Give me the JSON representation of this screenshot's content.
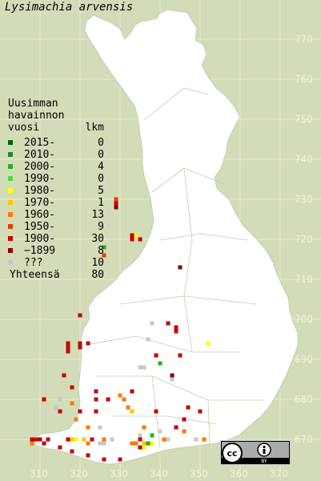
{
  "title": "Lysimachia arvensis",
  "legend": {
    "header": [
      "Uusimman",
      "havainnon"
    ],
    "col_year": "vuosi",
    "col_count": "lkm",
    "rows": [
      {
        "label": "2015-",
        "count": "0",
        "color": "#006400"
      },
      {
        "label": "2010-",
        "count": "0",
        "color": "#228b22"
      },
      {
        "label": "2000-",
        "count": "4",
        "color": "#22b022"
      },
      {
        "label": "1990-",
        "count": "0",
        "color": "#44e044"
      },
      {
        "label": "1980-",
        "count": "5",
        "color": "#ffff00"
      },
      {
        "label": "1970-",
        "count": "1",
        "color": "#ffc800"
      },
      {
        "label": "1960-",
        "count": "13",
        "color": "#ff7800"
      },
      {
        "label": "1950-",
        "count": "9",
        "color": "#e63c00"
      },
      {
        "label": "1900-",
        "count": "30",
        "color": "#c80000"
      },
      {
        "label": "−1899",
        "count": "8",
        "color": "#8b0000"
      },
      {
        "label": "???",
        "count": "10",
        "color": "#c8c8c8"
      }
    ],
    "total_label": "Yhteensä",
    "total_count": "80"
  },
  "axis_y": [
    "770",
    "760",
    "750",
    "740",
    "730",
    "720",
    "710",
    "700",
    "690",
    "680",
    "670"
  ],
  "axis_x": [
    "310",
    "320",
    "330",
    "340",
    "350",
    "360",
    "370"
  ],
  "license": {
    "badge": "cc",
    "by": "BY",
    "icon": "attribution-icon"
  },
  "observations": [
    {
      "e": 329,
      "n": 729,
      "c": "#c80000"
    },
    {
      "e": 329,
      "n": 728,
      "c": "#8b0000"
    },
    {
      "e": 329,
      "n": 730,
      "c": "#e63c00"
    },
    {
      "e": 333,
      "n": 721,
      "c": "#c80000"
    },
    {
      "e": 334,
      "n": 721,
      "c": "#ffff00"
    },
    {
      "e": 335,
      "n": 720,
      "c": "#c80000"
    },
    {
      "e": 333,
      "n": 720,
      "c": "#c80000"
    },
    {
      "e": 326,
      "n": 718,
      "c": "#22b022"
    },
    {
      "e": 326,
      "n": 716,
      "c": "#e63c00"
    },
    {
      "e": 345,
      "n": 713,
      "c": "#8b0000"
    },
    {
      "e": 342,
      "n": 699,
      "c": "#c80000"
    },
    {
      "e": 344,
      "n": 698,
      "c": "#c80000"
    },
    {
      "e": 344,
      "n": 697,
      "c": "#c80000"
    },
    {
      "e": 338,
      "n": 699,
      "c": "#c8c8c8"
    },
    {
      "e": 337,
      "n": 695,
      "c": "#c8c8c8"
    },
    {
      "e": 352,
      "n": 694,
      "c": "#ffff00"
    },
    {
      "e": 320,
      "n": 701,
      "c": "#c80000"
    },
    {
      "e": 317,
      "n": 694,
      "c": "#c80000"
    },
    {
      "e": 320,
      "n": 694,
      "c": "#c80000"
    },
    {
      "e": 320,
      "n": 693,
      "c": "#c80000"
    },
    {
      "e": 322,
      "n": 694,
      "c": "#c80000"
    },
    {
      "e": 317,
      "n": 693,
      "c": "#c80000"
    },
    {
      "e": 317,
      "n": 692,
      "c": "#c80000"
    },
    {
      "e": 339,
      "n": 691,
      "c": "#c80000"
    },
    {
      "e": 345,
      "n": 691,
      "c": "#c80000"
    },
    {
      "e": 340,
      "n": 689,
      "c": "#22b022"
    },
    {
      "e": 335,
      "n": 688,
      "c": "#c8c8c8"
    },
    {
      "e": 336,
      "n": 688,
      "c": "#c8c8c8"
    },
    {
      "e": 343,
      "n": 686,
      "c": "#8b0000"
    },
    {
      "e": 343,
      "n": 685,
      "c": "#c8c8c8"
    },
    {
      "e": 316,
      "n": 686,
      "c": "#c80000"
    },
    {
      "e": 318,
      "n": 683,
      "c": "#c80000"
    },
    {
      "e": 324,
      "n": 682,
      "c": "#c80000"
    },
    {
      "e": 330,
      "n": 681,
      "c": "#ff7800"
    },
    {
      "e": 333,
      "n": 682,
      "c": "#c80000"
    },
    {
      "e": 324,
      "n": 680,
      "c": "#c80000"
    },
    {
      "e": 327,
      "n": 680,
      "c": "#c80000"
    },
    {
      "e": 331,
      "n": 680,
      "c": "#ff7800"
    },
    {
      "e": 311,
      "n": 680,
      "c": "#c80000"
    },
    {
      "e": 315,
      "n": 680,
      "c": "#c8c8c8"
    },
    {
      "e": 318,
      "n": 679,
      "c": "#ff7800"
    },
    {
      "e": 314,
      "n": 678,
      "c": "#c8c8c8"
    },
    {
      "e": 315,
      "n": 677,
      "c": "#c80000"
    },
    {
      "e": 320,
      "n": 677,
      "c": "#c80000"
    },
    {
      "e": 324,
      "n": 677,
      "c": "#c80000"
    },
    {
      "e": 332,
      "n": 678,
      "c": "#ff7800"
    },
    {
      "e": 333,
      "n": 677,
      "c": "#ffc800"
    },
    {
      "e": 339,
      "n": 677,
      "c": "#c80000"
    },
    {
      "e": 347,
      "n": 678,
      "c": "#c80000"
    },
    {
      "e": 350,
      "n": 677,
      "c": "#c80000"
    },
    {
      "e": 346,
      "n": 675,
      "c": "#c80000"
    },
    {
      "e": 319,
      "n": 675,
      "c": "#ff7800"
    },
    {
      "e": 322,
      "n": 673,
      "c": "#ff7800"
    },
    {
      "e": 325,
      "n": 673,
      "c": "#c8c8c8"
    },
    {
      "e": 336,
      "n": 673,
      "c": "#ff7800"
    },
    {
      "e": 335,
      "n": 671,
      "c": "#c8c8c8"
    },
    {
      "e": 338,
      "n": 671,
      "c": "#22b022"
    },
    {
      "e": 340,
      "n": 672,
      "c": "#c8c8c8"
    },
    {
      "e": 344,
      "n": 673,
      "c": "#c80000"
    },
    {
      "e": 346,
      "n": 672,
      "c": "#ff7800"
    },
    {
      "e": 317,
      "n": 670,
      "c": "#c80000"
    },
    {
      "e": 318,
      "n": 670,
      "c": "#ffc800"
    },
    {
      "e": 319,
      "n": 670,
      "c": "#ffff00"
    },
    {
      "e": 321,
      "n": 670,
      "c": "#ffc800"
    },
    {
      "e": 323,
      "n": 670,
      "c": "#c80000"
    },
    {
      "e": 326,
      "n": 670,
      "c": "#ff7800"
    },
    {
      "e": 328,
      "n": 670,
      "c": "#c8c8c8"
    },
    {
      "e": 335,
      "n": 670,
      "c": "#c80000"
    },
    {
      "e": 336,
      "n": 669,
      "c": "#ffc800"
    },
    {
      "e": 337,
      "n": 669,
      "c": "#22b022"
    },
    {
      "e": 338,
      "n": 669,
      "c": "#ffff00"
    },
    {
      "e": 341,
      "n": 670,
      "c": "#ff7800"
    },
    {
      "e": 342,
      "n": 670,
      "c": "#c8c8c8"
    },
    {
      "e": 349,
      "n": 670,
      "c": "#c8c8c8"
    },
    {
      "e": 351,
      "n": 670,
      "c": "#ff7800"
    },
    {
      "e": 308,
      "n": 670,
      "c": "#c80000"
    },
    {
      "e": 309,
      "n": 670,
      "c": "#c80000"
    },
    {
      "e": 310,
      "n": 670,
      "c": "#c80000"
    },
    {
      "e": 312,
      "n": 670,
      "c": "#c80000"
    },
    {
      "e": 308,
      "n": 669,
      "c": "#ff7800"
    },
    {
      "e": 311,
      "n": 669,
      "c": "#c80000"
    },
    {
      "e": 322,
      "n": 669,
      "c": "#ff7800"
    },
    {
      "e": 325,
      "n": 669,
      "c": "#c8c8c8"
    },
    {
      "e": 326,
      "n": 669,
      "c": "#c8c8c8"
    },
    {
      "e": 333,
      "n": 669,
      "c": "#ff7800"
    },
    {
      "e": 334,
      "n": 669,
      "c": "#ff7800"
    },
    {
      "e": 335,
      "n": 668,
      "c": "#c80000"
    },
    {
      "e": 336,
      "n": 668,
      "c": "#ffff00"
    },
    {
      "e": 315,
      "n": 668,
      "c": "#c80000"
    },
    {
      "e": 318,
      "n": 667,
      "c": "#c80000"
    },
    {
      "e": 322,
      "n": 666,
      "c": "#c80000"
    },
    {
      "e": 326,
      "n": 665,
      "c": "#c80000"
    },
    {
      "e": 330,
      "n": 665,
      "c": "#c80000"
    }
  ]
}
